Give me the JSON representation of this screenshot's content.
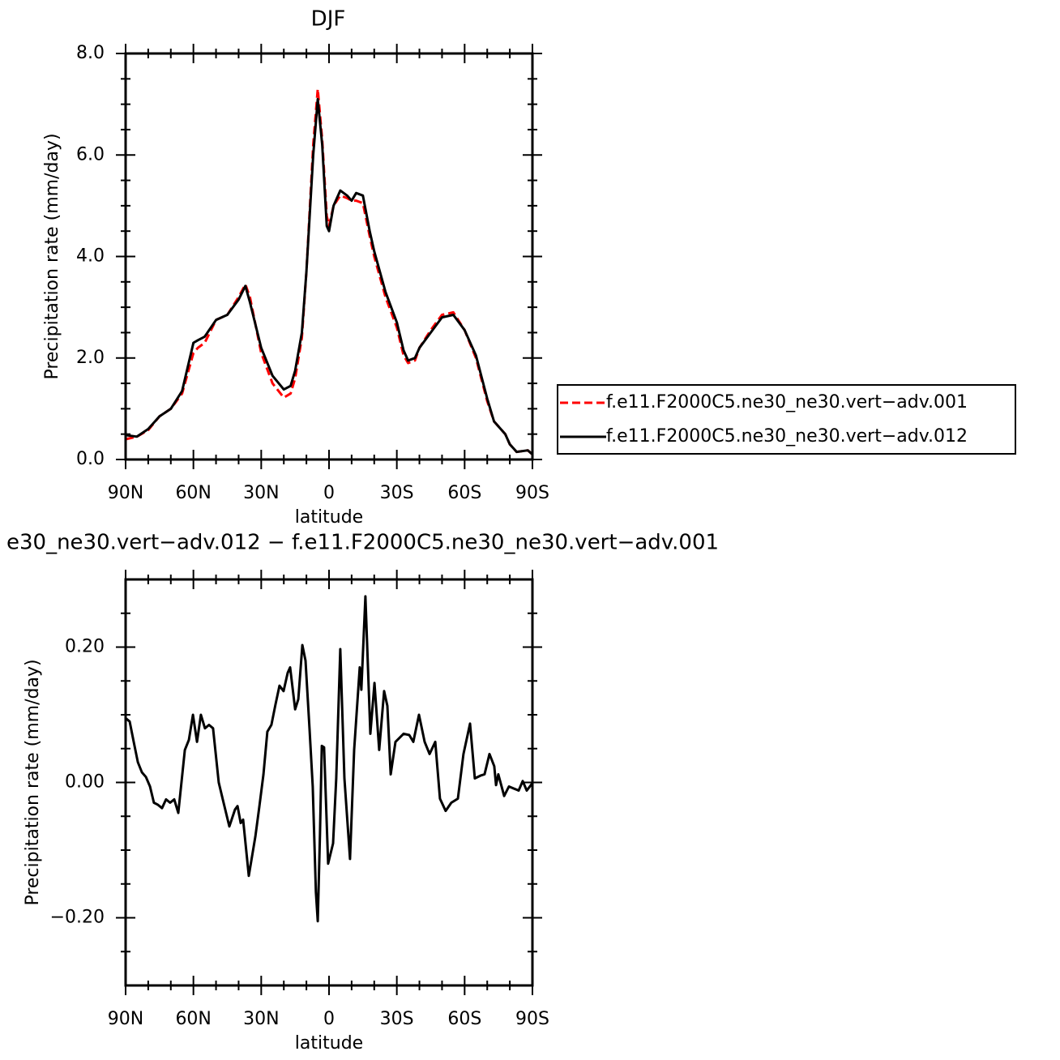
{
  "chart_data": [
    {
      "type": "line",
      "title": "DJF",
      "xlabel": "latitude",
      "ylabel": "Precipitation rate (mm/day)",
      "xlim": [
        90,
        -90
      ],
      "xticks": [
        {
          "value": 90,
          "label": "90N"
        },
        {
          "value": 60,
          "label": "60N"
        },
        {
          "value": 30,
          "label": "30N"
        },
        0,
        {
          "value": -30,
          "label": "30S"
        },
        {
          "value": -60,
          "label": "60S"
        },
        {
          "value": -90,
          "label": "90S"
        }
      ],
      "xminorticks": [
        80,
        70,
        50,
        40,
        20,
        10,
        -10,
        -20,
        -40,
        -50,
        -70,
        -80
      ],
      "ylim": [
        0,
        8
      ],
      "yticks": [
        {
          "value": 0,
          "label": "0.0"
        },
        {
          "value": 2,
          "label": "2.0"
        },
        {
          "value": 4,
          "label": "4.0"
        },
        {
          "value": 6,
          "label": "6.0"
        },
        {
          "value": 8,
          "label": "8.0"
        }
      ],
      "yminorticks": [
        0.5,
        1,
        1.5,
        2.5,
        3,
        3.5,
        4.5,
        5,
        5.5,
        6.5,
        7,
        7.5
      ],
      "legend": "right",
      "x": [
        90,
        85,
        80,
        75,
        70,
        65,
        60,
        58,
        55,
        50,
        45,
        40,
        37,
        35,
        30,
        25,
        20,
        17,
        15,
        12,
        10,
        7,
        5,
        3,
        1,
        0,
        -2,
        -5,
        -8,
        -10,
        -12,
        -15,
        -18,
        -20,
        -25,
        -30,
        -33,
        -35,
        -38,
        -40,
        -45,
        -50,
        -55,
        -60,
        -65,
        -70,
        -73,
        -78,
        -80,
        -83,
        -88,
        -90
      ],
      "series": [
        {
          "name": "f.e11.F2000C5.ne30_ne30.vert−adv.001",
          "color": "#ff0000",
          "dash": true,
          "values": [
            0.4,
            0.45,
            0.58,
            0.85,
            1.0,
            1.3,
            2.1,
            2.2,
            2.3,
            2.75,
            2.85,
            3.2,
            3.45,
            3.2,
            2.1,
            1.5,
            1.22,
            1.3,
            1.6,
            2.4,
            3.7,
            6.2,
            7.3,
            6.3,
            4.8,
            4.6,
            5.0,
            5.2,
            5.15,
            5.1,
            5.1,
            5.05,
            4.4,
            4.0,
            3.2,
            2.6,
            2.05,
            1.9,
            1.95,
            2.2,
            2.55,
            2.85,
            2.9,
            2.55,
            2.0,
            1.15,
            0.75,
            0.5,
            0.3,
            0.15,
            0.18,
            0.1
          ]
        },
        {
          "name": "f.e11.F2000C5.ne30_ne30.vert−adv.012",
          "color": "#000000",
          "dash": false,
          "values": [
            0.48,
            0.45,
            0.6,
            0.85,
            1.0,
            1.35,
            2.3,
            2.35,
            2.42,
            2.75,
            2.85,
            3.15,
            3.42,
            3.1,
            2.2,
            1.65,
            1.38,
            1.45,
            1.75,
            2.5,
            3.7,
            6.0,
            7.1,
            6.2,
            4.6,
            4.5,
            5.0,
            5.3,
            5.2,
            5.1,
            5.25,
            5.2,
            4.5,
            4.1,
            3.3,
            2.7,
            2.15,
            1.95,
            2.0,
            2.2,
            2.5,
            2.8,
            2.85,
            2.55,
            2.05,
            1.2,
            0.75,
            0.5,
            0.3,
            0.15,
            0.18,
            0.1
          ]
        }
      ]
    },
    {
      "type": "line",
      "title": "e30_ne30.vert−adv.012 − f.e11.F2000C5.ne30_ne30.vert−adv.001",
      "xlabel": "latitude",
      "ylabel": "Precipitation rate (mm/day)",
      "xlim": [
        90,
        -90
      ],
      "xticks": [
        {
          "value": 90,
          "label": "90N"
        },
        {
          "value": 60,
          "label": "60N"
        },
        {
          "value": 30,
          "label": "30N"
        },
        0,
        {
          "value": -30,
          "label": "30S"
        },
        {
          "value": -60,
          "label": "60S"
        },
        {
          "value": -90,
          "label": "90S"
        }
      ],
      "xminorticks": [
        80,
        70,
        50,
        40,
        20,
        10,
        -10,
        -20,
        -40,
        -50,
        -70,
        -80
      ],
      "ylim": [
        -0.3,
        0.3
      ],
      "yticks": [
        {
          "value": 0.2,
          "label": "0.20"
        },
        {
          "value": 0,
          "label": "0.00"
        },
        {
          "value": -0.2,
          "label": "−0.20"
        }
      ],
      "yminorticks": [
        0.25,
        0.15,
        0.1,
        0.05,
        -0.05,
        -0.1,
        -0.15,
        -0.25
      ],
      "color": "#000000",
      "x": [
        90,
        88.2,
        86.4,
        84.6,
        82.8,
        81,
        79.2,
        77.5,
        75.7,
        73.9,
        72.1,
        70.3,
        68.5,
        66.7,
        63.8,
        62,
        60.2,
        58.4,
        56.7,
        54.9,
        53.1,
        51.3,
        48.8,
        47,
        44.1,
        41.6,
        40.5,
        39.1,
        38,
        35.5,
        32.6,
        30.8,
        29,
        27.3,
        25.5,
        23.7,
        21.9,
        20.1,
        18.3,
        17.2,
        15,
        13.6,
        11.8,
        10.4,
        8.6,
        7.2,
        5.8,
        5,
        4,
        3.2,
        2.2,
        0.4,
        -1.8,
        -3.2,
        -5,
        -6.8,
        -9.3,
        -11.1,
        -13.6,
        -14.3,
        -16.1,
        -18.3,
        -20.1,
        -22.2,
        -24.4,
        -25.8,
        -27.3,
        -29.4,
        -31.2,
        -33,
        -35.5,
        -37.3,
        -39.8,
        -42.3,
        -44.5,
        -47,
        -49.1,
        -51.6,
        -54.1,
        -57,
        -59.5,
        -62.4,
        -64.5,
        -67,
        -68.8,
        -71,
        -73.1,
        -73.9,
        -74.9,
        -77.5,
        -79.6,
        -83.9,
        -85.7,
        -87.5,
        -90
      ],
      "values": [
        0.095,
        0.09,
        0.06,
        0.03,
        0.015,
        0.008,
        -0.006,
        -0.03,
        -0.033,
        -0.038,
        -0.025,
        -0.03,
        -0.025,
        -0.045,
        0.048,
        0.063,
        0.1,
        0.06,
        0.1,
        0.08,
        0.085,
        0.08,
        0.0,
        -0.025,
        -0.065,
        -0.04,
        -0.035,
        -0.06,
        -0.055,
        -0.138,
        -0.08,
        -0.035,
        0.012,
        0.075,
        0.085,
        0.115,
        0.143,
        0.135,
        0.162,
        0.17,
        0.108,
        0.123,
        0.203,
        0.18,
        0.078,
        -0.006,
        -0.162,
        -0.205,
        -0.078,
        0.054,
        0.052,
        -0.12,
        -0.09,
        0.006,
        0.197,
        0.006,
        -0.113,
        0.048,
        0.17,
        0.137,
        0.275,
        0.072,
        0.147,
        0.048,
        0.135,
        0.113,
        0.012,
        0.06,
        0.066,
        0.072,
        0.07,
        0.06,
        0.1,
        0.06,
        0.042,
        0.06,
        -0.024,
        -0.042,
        -0.03,
        -0.024,
        0.042,
        0.087,
        0.006,
        0.01,
        0.012,
        0.042,
        0.024,
        -0.004,
        0.012,
        -0.02,
        -0.006,
        -0.012,
        0.002,
        -0.012,
        -0.001
      ]
    }
  ]
}
